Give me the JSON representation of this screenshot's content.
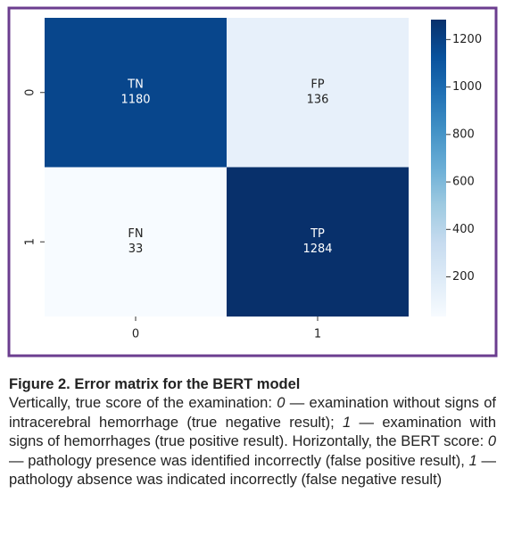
{
  "chart_data": {
    "type": "heatmap",
    "x_categories": [
      "0",
      "1"
    ],
    "y_categories": [
      "0",
      "1"
    ],
    "values": [
      [
        1180,
        136
      ],
      [
        33,
        1284
      ]
    ],
    "annotations": [
      [
        "TN",
        "FP"
      ],
      [
        "FN",
        "TP"
      ]
    ],
    "colormap": [
      "#f7fbff",
      "#deebf7",
      "#c6dbef",
      "#9ecae1",
      "#6baed6",
      "#4292c6",
      "#2171b5",
      "#08519c",
      "#08306b"
    ],
    "clim": [
      33,
      1284
    ],
    "cticks": [
      200,
      400,
      600,
      800,
      1000,
      1200
    ]
  },
  "caption": {
    "title": "Figure 2. Error matrix for the BERT model",
    "text": [
      {
        "text": "Vertically, true score of the examination: "
      },
      {
        "text": "0",
        "italic": true
      },
      {
        "text": " — examination without signs of intracerebral hemorrhage (true negative result); "
      },
      {
        "text": "1",
        "italic": true
      },
      {
        "text": " — examination with signs of hemorrhages (true positive result). Horizontally, the BERT score: "
      },
      {
        "text": "0",
        "italic": true
      },
      {
        "text": " — pathology presence was identified incorrectly (false positive result), "
      },
      {
        "text": "1",
        "italic": true
      },
      {
        "text": " — pathology absence was indicated incorrectly (false negative result)"
      }
    ]
  }
}
